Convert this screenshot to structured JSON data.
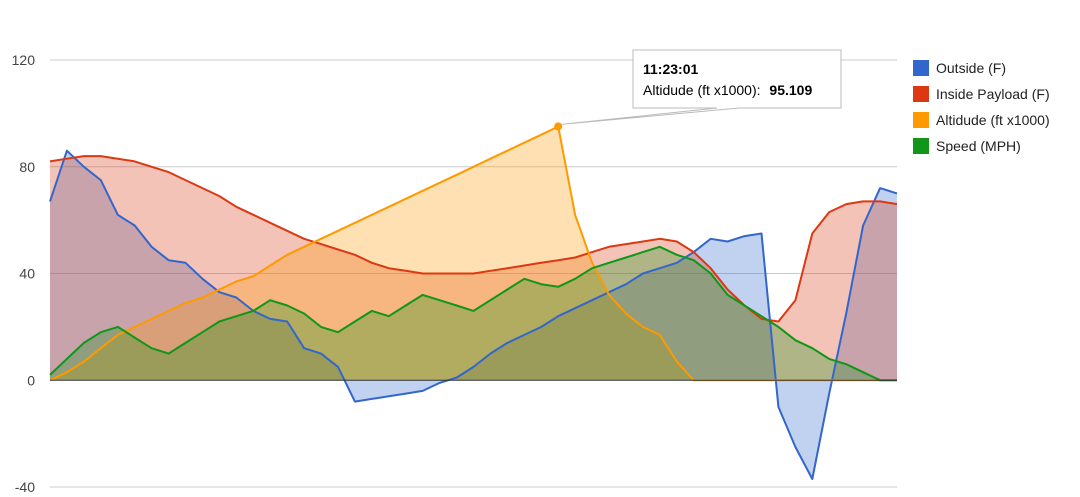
{
  "chart_data": {
    "type": "area",
    "ylim": [
      -40,
      120
    ],
    "yticks": [
      -40,
      0,
      40,
      80,
      120
    ],
    "x": [
      0,
      2,
      4,
      6,
      8,
      10,
      12,
      14,
      16,
      18,
      20,
      22,
      24,
      26,
      28,
      30,
      32,
      34,
      36,
      38,
      40,
      42,
      44,
      46,
      48,
      50,
      52,
      54,
      56,
      58,
      60,
      62,
      64,
      66,
      68,
      70,
      72,
      74,
      76,
      78,
      80,
      82,
      84,
      86,
      88,
      90,
      92,
      94,
      96,
      98,
      100
    ],
    "series": [
      {
        "name": "Outside (F)",
        "color": "#3366cc",
        "values": [
          67,
          86,
          80,
          75,
          62,
          58,
          50,
          45,
          44,
          38,
          33,
          31,
          26,
          23,
          22,
          12,
          10,
          5,
          -8,
          -7,
          -6,
          -5,
          -4,
          -1,
          1,
          5,
          10,
          14,
          17,
          20,
          24,
          27,
          30,
          33,
          36,
          40,
          42,
          44,
          48,
          53,
          52,
          54,
          55,
          -10,
          -25,
          -37,
          -5,
          25,
          58,
          72,
          70
        ]
      },
      {
        "name": "Inside Payload (F)",
        "color": "#dc3912",
        "values": [
          82,
          83,
          84,
          84,
          83,
          82,
          80,
          78,
          75,
          72,
          69,
          65,
          62,
          59,
          56,
          53,
          51,
          49,
          47,
          44,
          42,
          41,
          40,
          40,
          40,
          40,
          41,
          42,
          43,
          44,
          45,
          46,
          48,
          50,
          51,
          52,
          53,
          52,
          48,
          42,
          34,
          28,
          23,
          22,
          30,
          55,
          63,
          66,
          67,
          67,
          66
        ]
      },
      {
        "name": "Altidude (ft x1000)",
        "color": "#ff9900",
        "values": [
          0,
          3,
          7,
          12,
          17,
          20,
          23,
          26,
          29,
          31,
          34,
          37,
          39,
          43,
          47,
          50,
          53,
          56,
          59,
          62,
          65,
          68,
          71,
          74,
          77,
          80,
          83,
          86,
          89,
          92,
          95.1,
          62,
          44,
          32,
          25,
          20,
          17,
          7,
          0,
          0,
          0,
          0,
          0,
          0,
          0,
          0,
          0,
          0,
          0,
          0,
          0
        ]
      },
      {
        "name": "Speed (MPH)",
        "color": "#109618",
        "values": [
          2,
          8,
          14,
          18,
          20,
          16,
          12,
          10,
          14,
          18,
          22,
          24,
          26,
          30,
          28,
          25,
          20,
          18,
          22,
          26,
          24,
          28,
          32,
          30,
          28,
          26,
          30,
          34,
          38,
          36,
          35,
          38,
          42,
          44,
          46,
          48,
          50,
          47,
          45,
          40,
          32,
          28,
          24,
          20,
          15,
          12,
          8,
          6,
          3,
          0,
          0
        ]
      }
    ],
    "legend": {
      "position": "right",
      "entries": [
        "Outside (F)",
        "Inside Payload (F)",
        "Altidude (ft x1000)",
        "Speed (MPH)"
      ]
    },
    "tooltip": {
      "series": "Altidude (ft x1000)",
      "time": "11:23:01",
      "label": "Altidude (ft x1000):",
      "value": "95.109",
      "x": 60,
      "y": 95.109
    },
    "grid": true
  }
}
